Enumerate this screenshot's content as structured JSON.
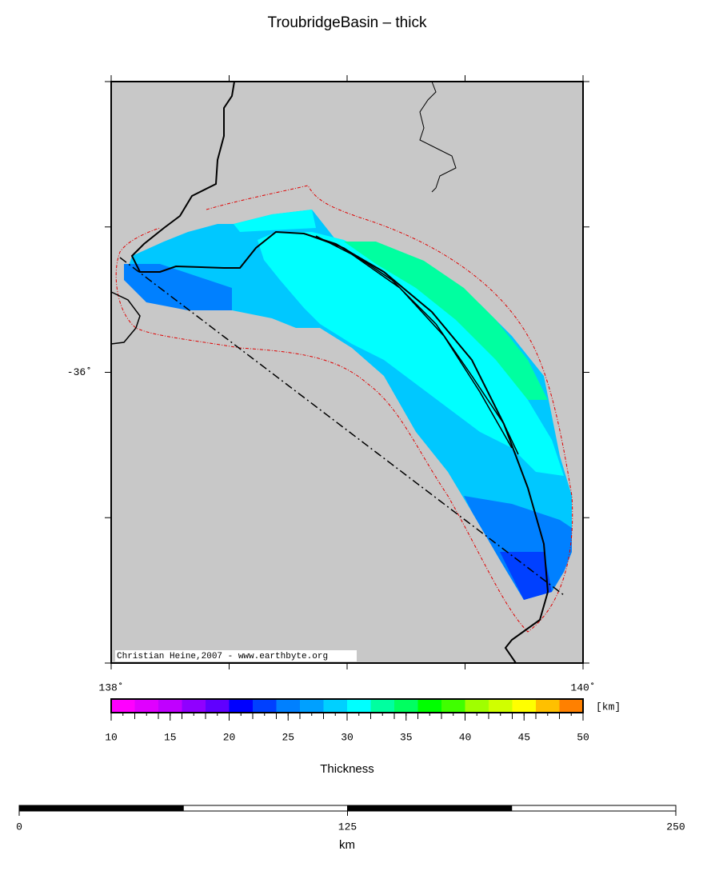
{
  "title": "TroubridgeBasin – thick",
  "map": {
    "xticks": [
      {
        "value": 138,
        "label": "138˚"
      },
      {
        "value": 140,
        "label": "140˚"
      }
    ],
    "xlim": [
      138,
      140
    ],
    "yticks": [
      {
        "value": -36,
        "label": "-36˚"
      }
    ],
    "ylim": [
      -37,
      -35
    ],
    "credit": "Christian Heine,2007 - www.earthbyte.org"
  },
  "colorbar": {
    "range": [
      10,
      50
    ],
    "ticks": [
      10,
      15,
      20,
      25,
      30,
      35,
      40,
      45,
      50
    ],
    "unit": "[km]",
    "label": "Thickness",
    "colors": [
      "#ff00ff",
      "#e000ff",
      "#c000ff",
      "#9000ff",
      "#6000ff",
      "#0000ff",
      "#0040ff",
      "#0080ff",
      "#00a0ff",
      "#00d0ff",
      "#00ffff",
      "#00ffa0",
      "#00ff60",
      "#00ff00",
      "#40ff00",
      "#a0ff00",
      "#d0ff00",
      "#ffff00",
      "#ffc000",
      "#ff8000"
    ]
  },
  "scalebar": {
    "range": [
      0,
      250
    ],
    "ticks": [
      0,
      125,
      250
    ],
    "unit": "km"
  }
}
